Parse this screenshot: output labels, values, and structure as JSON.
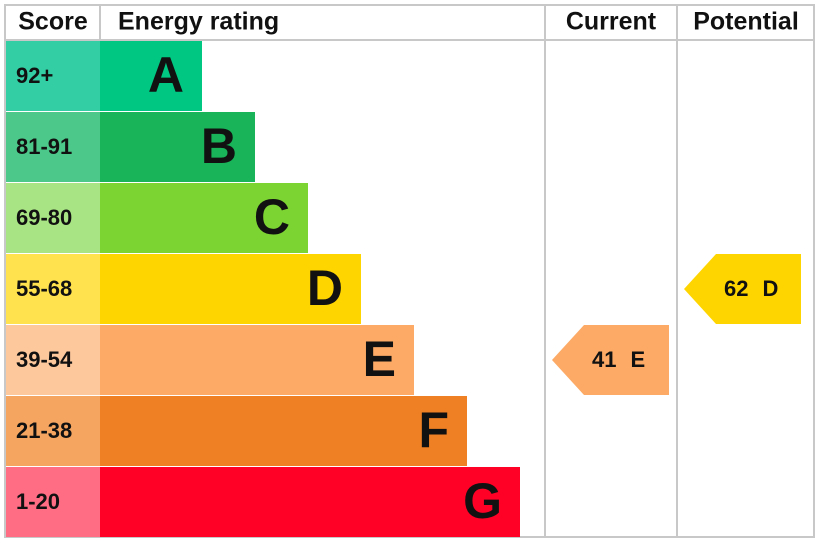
{
  "header": {
    "score": "Score",
    "rating": "Energy rating",
    "current": "Current",
    "potential": "Potential"
  },
  "bands": [
    {
      "score": "92+",
      "letter": "A",
      "color": "#00c781",
      "score_color": "#33cea4"
    },
    {
      "score": "81-91",
      "letter": "B",
      "color": "#19b459",
      "score_color": "#4cc88a"
    },
    {
      "score": "69-80",
      "letter": "C",
      "color": "#7cd433",
      "score_color": "#a8e483"
    },
    {
      "score": "55-68",
      "letter": "D",
      "color": "#ffd500",
      "score_color": "#ffe24d"
    },
    {
      "score": "39-54",
      "letter": "E",
      "color": "#fcaa65",
      "score_color": "#fdc89c"
    },
    {
      "score": "21-38",
      "letter": "F",
      "color": "#ef8023",
      "score_color": "#f5a560"
    },
    {
      "score": "1-20",
      "letter": "G",
      "color": "#ff0026",
      "score_color": "#ff6d84"
    }
  ],
  "current": {
    "value": 41,
    "letter": "E"
  },
  "potential": {
    "value": 62,
    "letter": "D"
  }
}
